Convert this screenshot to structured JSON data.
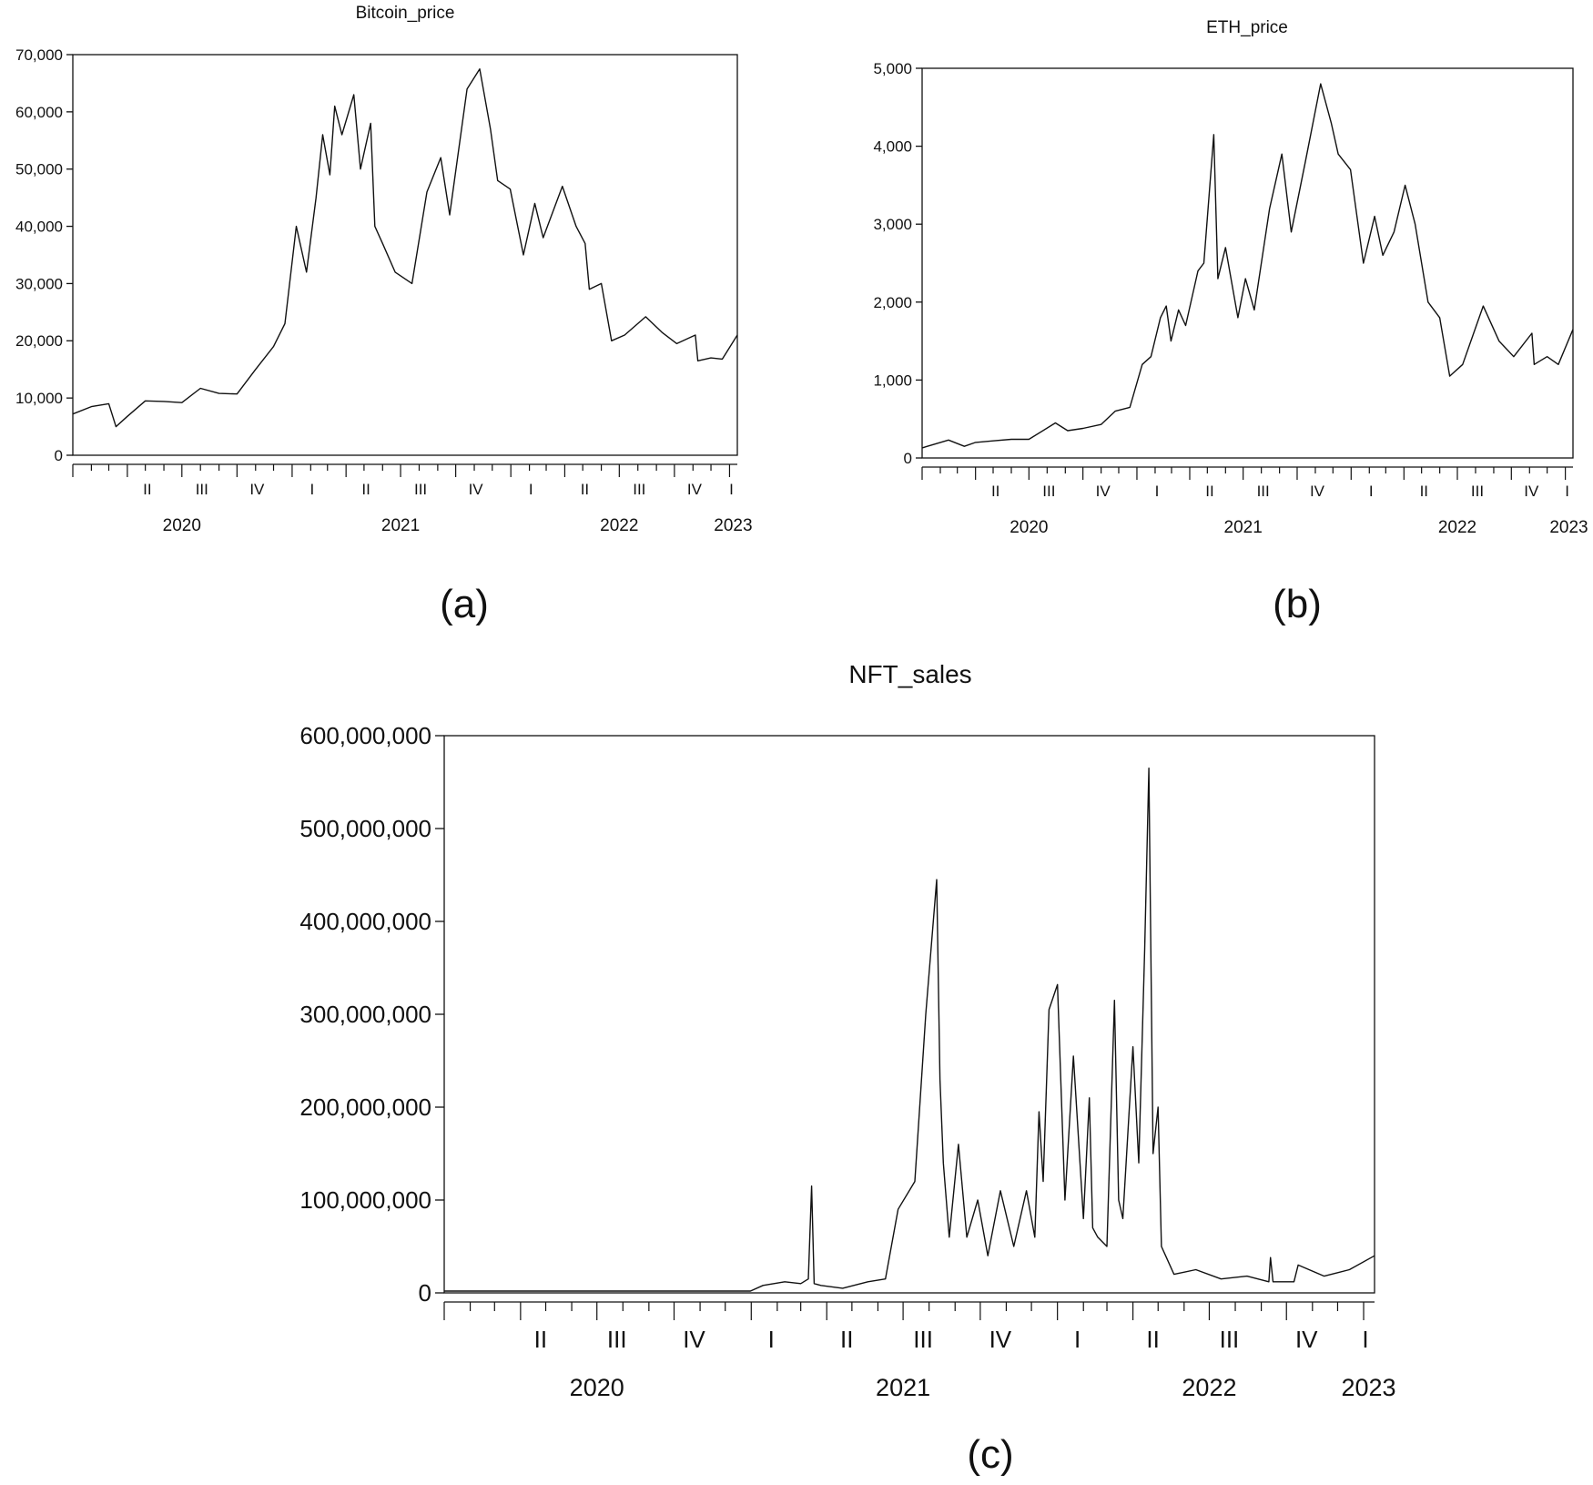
{
  "panel_labels": [
    "(a)",
    "(b)",
    "(c)"
  ],
  "chart_data": [
    {
      "type": "line",
      "title": "Bitcoin_price",
      "xlabel": "",
      "ylabel": "",
      "ylim": [
        0,
        70000
      ],
      "yticks": [
        0,
        10000,
        20000,
        30000,
        40000,
        50000,
        60000,
        70000
      ],
      "ytick_labels": [
        "0",
        "10,000",
        "20,000",
        "30,000",
        "40,000",
        "50,000",
        "60,000",
        "70,000"
      ],
      "xlim": [
        "2020-01-01",
        "2023-01-14"
      ],
      "quarter_ticks": [
        {
          "label": "II",
          "date": "2020-04-01"
        },
        {
          "label": "III",
          "date": "2020-07-01"
        },
        {
          "label": "IV",
          "date": "2020-10-01"
        },
        {
          "label": "I",
          "date": "2021-01-01"
        },
        {
          "label": "II",
          "date": "2021-04-01"
        },
        {
          "label": "III",
          "date": "2021-07-01"
        },
        {
          "label": "IV",
          "date": "2021-10-01"
        },
        {
          "label": "I",
          "date": "2022-01-01"
        },
        {
          "label": "II",
          "date": "2022-04-01"
        },
        {
          "label": "III",
          "date": "2022-07-01"
        },
        {
          "label": "IV",
          "date": "2022-10-01"
        },
        {
          "label": "I",
          "date": "2023-01-01"
        }
      ],
      "year_labels": [
        {
          "label": "2020",
          "date": "2020-07-01"
        },
        {
          "label": "2021",
          "date": "2021-07-01"
        },
        {
          "label": "2022",
          "date": "2022-07-01"
        },
        {
          "label": "2023",
          "date": "2023-01-07"
        }
      ],
      "grid": false,
      "series": [
        {
          "x": [
            "2020-01-01",
            "2020-02-01",
            "2020-03-01",
            "2020-03-13",
            "2020-04-01",
            "2020-05-01",
            "2020-06-01",
            "2020-07-01",
            "2020-08-01",
            "2020-09-01",
            "2020-10-01",
            "2020-11-01",
            "2020-12-01",
            "2020-12-20",
            "2021-01-08",
            "2021-01-25",
            "2021-02-10",
            "2021-02-21",
            "2021-03-05",
            "2021-03-13",
            "2021-03-25",
            "2021-04-14",
            "2021-04-25",
            "2021-05-12",
            "2021-05-19",
            "2021-06-01",
            "2021-06-22",
            "2021-07-20",
            "2021-08-14",
            "2021-09-06",
            "2021-09-21",
            "2021-10-20",
            "2021-11-10",
            "2021-11-28",
            "2021-12-10",
            "2021-12-31",
            "2022-01-22",
            "2022-02-10",
            "2022-02-24",
            "2022-03-28",
            "2022-04-20",
            "2022-05-05",
            "2022-05-12",
            "2022-06-01",
            "2022-06-18",
            "2022-07-10",
            "2022-08-14",
            "2022-09-10",
            "2022-10-05",
            "2022-11-05",
            "2022-11-09",
            "2022-12-01",
            "2022-12-20",
            "2023-01-14"
          ],
          "values": [
            7200,
            8500,
            9000,
            5000,
            6800,
            9500,
            9400,
            9200,
            11700,
            10800,
            10700,
            15000,
            19000,
            23000,
            40000,
            32000,
            45000,
            56000,
            49000,
            61000,
            56000,
            63000,
            50000,
            58000,
            40000,
            37000,
            32000,
            30000,
            46000,
            52000,
            42000,
            64000,
            67500,
            57000,
            48000,
            46500,
            35000,
            44000,
            38000,
            47000,
            40000,
            37000,
            29000,
            30000,
            20000,
            21000,
            24200,
            21500,
            19500,
            21000,
            16500,
            17000,
            16800,
            21000
          ]
        }
      ]
    },
    {
      "type": "line",
      "title": "ETH_price",
      "xlabel": "",
      "ylabel": "",
      "ylim": [
        0,
        5000
      ],
      "yticks": [
        0,
        1000,
        2000,
        3000,
        4000,
        5000
      ],
      "ytick_labels": [
        "0",
        "1,000",
        "2,000",
        "3,000",
        "4,000",
        "5,000"
      ],
      "xlim": [
        "2020-01-01",
        "2023-01-14"
      ],
      "quarter_ticks": [
        {
          "label": "II",
          "date": "2020-04-01"
        },
        {
          "label": "III",
          "date": "2020-07-01"
        },
        {
          "label": "IV",
          "date": "2020-10-01"
        },
        {
          "label": "I",
          "date": "2021-01-01"
        },
        {
          "label": "II",
          "date": "2021-04-01"
        },
        {
          "label": "III",
          "date": "2021-07-01"
        },
        {
          "label": "IV",
          "date": "2021-10-01"
        },
        {
          "label": "I",
          "date": "2022-01-01"
        },
        {
          "label": "II",
          "date": "2022-04-01"
        },
        {
          "label": "III",
          "date": "2022-07-01"
        },
        {
          "label": "IV",
          "date": "2022-10-01"
        },
        {
          "label": "I",
          "date": "2023-01-01"
        }
      ],
      "year_labels": [
        {
          "label": "2020",
          "date": "2020-07-01"
        },
        {
          "label": "2021",
          "date": "2021-07-01"
        },
        {
          "label": "2022",
          "date": "2022-07-01"
        },
        {
          "label": "2023",
          "date": "2023-01-07"
        }
      ],
      "grid": false,
      "series": [
        {
          "x": [
            "2020-01-01",
            "2020-02-15",
            "2020-03-13",
            "2020-04-01",
            "2020-05-01",
            "2020-06-01",
            "2020-07-01",
            "2020-08-15",
            "2020-09-05",
            "2020-10-01",
            "2020-11-01",
            "2020-11-25",
            "2020-12-20",
            "2021-01-10",
            "2021-01-25",
            "2021-02-10",
            "2021-02-20",
            "2021-02-28",
            "2021-03-13",
            "2021-03-25",
            "2021-04-15",
            "2021-04-25",
            "2021-05-12",
            "2021-05-19",
            "2021-06-01",
            "2021-06-22",
            "2021-07-05",
            "2021-07-20",
            "2021-08-15",
            "2021-09-05",
            "2021-09-21",
            "2021-10-15",
            "2021-11-10",
            "2021-11-28",
            "2021-12-10",
            "2021-12-31",
            "2022-01-22",
            "2022-02-10",
            "2022-02-24",
            "2022-03-15",
            "2022-04-03",
            "2022-04-20",
            "2022-05-12",
            "2022-06-01",
            "2022-06-18",
            "2022-07-10",
            "2022-08-14",
            "2022-09-10",
            "2022-10-05",
            "2022-11-05",
            "2022-11-09",
            "2022-12-01",
            "2022-12-20",
            "2023-01-14"
          ],
          "values": [
            130,
            230,
            150,
            200,
            220,
            240,
            240,
            450,
            350,
            380,
            430,
            600,
            650,
            1200,
            1300,
            1800,
            1950,
            1500,
            1900,
            1700,
            2400,
            2500,
            4150,
            2300,
            2700,
            1800,
            2300,
            1900,
            3200,
            3900,
            2900,
            3800,
            4800,
            4300,
            3900,
            3700,
            2500,
            3100,
            2600,
            2900,
            3500,
            3000,
            2000,
            1800,
            1050,
            1200,
            1950,
            1500,
            1300,
            1600,
            1200,
            1300,
            1200,
            1650
          ]
        }
      ]
    },
    {
      "type": "line",
      "title": "NFT_sales",
      "xlabel": "",
      "ylabel": "",
      "ylim": [
        0,
        600000000
      ],
      "yticks": [
        0,
        100000000,
        200000000,
        300000000,
        400000000,
        500000000,
        600000000
      ],
      "ytick_labels": [
        "0",
        "100,000,000",
        "200,000,000",
        "300,000,000",
        "400,000,000",
        "500,000,000",
        "600,000,000"
      ],
      "xlim": [
        "2020-01-01",
        "2023-01-14"
      ],
      "quarter_ticks": [
        {
          "label": "II",
          "date": "2020-04-01"
        },
        {
          "label": "III",
          "date": "2020-07-01"
        },
        {
          "label": "IV",
          "date": "2020-10-01"
        },
        {
          "label": "I",
          "date": "2021-01-01"
        },
        {
          "label": "II",
          "date": "2021-04-01"
        },
        {
          "label": "III",
          "date": "2021-07-01"
        },
        {
          "label": "IV",
          "date": "2021-10-01"
        },
        {
          "label": "I",
          "date": "2022-01-01"
        },
        {
          "label": "II",
          "date": "2022-04-01"
        },
        {
          "label": "III",
          "date": "2022-07-01"
        },
        {
          "label": "IV",
          "date": "2022-10-01"
        },
        {
          "label": "I",
          "date": "2023-01-01"
        }
      ],
      "year_labels": [
        {
          "label": "2020",
          "date": "2020-07-01"
        },
        {
          "label": "2021",
          "date": "2021-07-01"
        },
        {
          "label": "2022",
          "date": "2022-07-01"
        },
        {
          "label": "2023",
          "date": "2023-01-07"
        }
      ],
      "grid": false,
      "series": [
        {
          "x": [
            "2020-01-01",
            "2020-12-31",
            "2021-01-15",
            "2021-02-10",
            "2021-03-01",
            "2021-03-10",
            "2021-03-14",
            "2021-03-17",
            "2021-03-25",
            "2021-04-20",
            "2021-05-20",
            "2021-06-10",
            "2021-06-25",
            "2021-07-15",
            "2021-07-28",
            "2021-08-10",
            "2021-08-14",
            "2021-08-18",
            "2021-08-25",
            "2021-09-05",
            "2021-09-15",
            "2021-09-28",
            "2021-10-10",
            "2021-10-25",
            "2021-11-10",
            "2021-11-25",
            "2021-12-05",
            "2021-12-10",
            "2021-12-15",
            "2021-12-22",
            "2022-01-01",
            "2022-01-10",
            "2022-01-20",
            "2022-02-01",
            "2022-02-08",
            "2022-02-12",
            "2022-02-18",
            "2022-03-01",
            "2022-03-10",
            "2022-03-15",
            "2022-03-20",
            "2022-04-01",
            "2022-04-08",
            "2022-04-15",
            "2022-04-20",
            "2022-04-25",
            "2022-05-01",
            "2022-05-05",
            "2022-05-10",
            "2022-05-20",
            "2022-06-15",
            "2022-07-15",
            "2022-08-15",
            "2022-09-10",
            "2022-09-12",
            "2022-09-15",
            "2022-10-10",
            "2022-10-15",
            "2022-11-15",
            "2022-12-15",
            "2023-01-14"
          ],
          "values": [
            2000000,
            2000000,
            8000000,
            12000000,
            10000000,
            15000000,
            115000000,
            10000000,
            8000000,
            5000000,
            12000000,
            15000000,
            90000000,
            120000000,
            300000000,
            445000000,
            230000000,
            140000000,
            60000000,
            160000000,
            60000000,
            100000000,
            40000000,
            110000000,
            50000000,
            110000000,
            60000000,
            195000000,
            120000000,
            305000000,
            332000000,
            100000000,
            255000000,
            80000000,
            210000000,
            70000000,
            60000000,
            50000000,
            315000000,
            100000000,
            80000000,
            265000000,
            140000000,
            370000000,
            565000000,
            150000000,
            200000000,
            50000000,
            40000000,
            20000000,
            25000000,
            15000000,
            18000000,
            12000000,
            38000000,
            12000000,
            12000000,
            30000000,
            18000000,
            25000000,
            40000000
          ]
        }
      ]
    }
  ]
}
